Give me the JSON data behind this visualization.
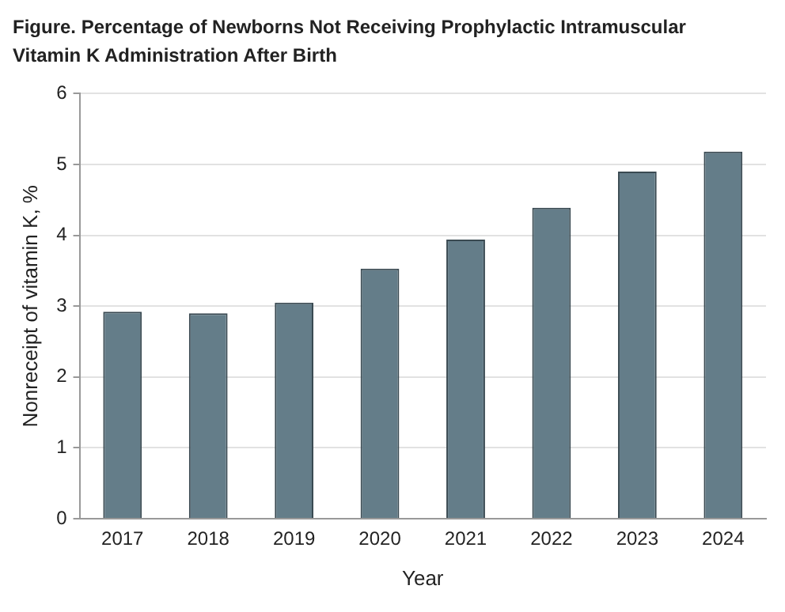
{
  "chart_data": {
    "type": "bar",
    "title": "Figure.  Percentage of Newborns Not Receiving Prophylactic Intramuscular Vitamin K Administration After Birth",
    "xlabel": "Year",
    "ylabel": "Nonreceipt of vitamin K, %",
    "categories": [
      "2017",
      "2018",
      "2019",
      "2020",
      "2021",
      "2022",
      "2023",
      "2024"
    ],
    "values": [
      2.92,
      2.9,
      3.05,
      3.53,
      3.94,
      4.39,
      4.9,
      5.18
    ],
    "color": "#647d89",
    "ylim": [
      0,
      6
    ],
    "yticks": [
      0,
      1,
      2,
      3,
      4,
      5,
      6
    ],
    "grid": "y"
  }
}
